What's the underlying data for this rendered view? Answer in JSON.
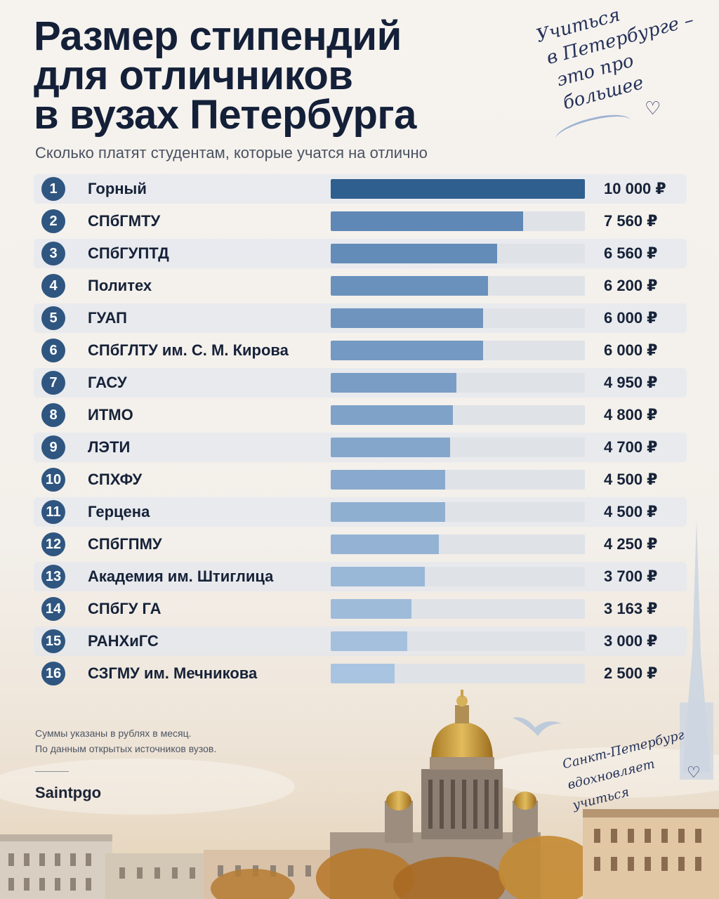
{
  "title_lines": [
    "Размер стипендий",
    "для отличников",
    "в вузах Петербурга"
  ],
  "subtitle": "Сколько платят студентам, которые учатся на отлично",
  "note_top_lines": [
    "Учиться",
    "в Петербурге –",
    "это про большее"
  ],
  "note_bottom_lines": [
    "Санкт-Петербург",
    "вдохновляет учиться"
  ],
  "footnote_lines": [
    "Суммы указаны в рублях в месяц.",
    "По данным открытых источников вузов."
  ],
  "brand": "Saintpgo",
  "colors": {
    "top_bar": "#2f5f8e",
    "bar_dark": "#5f88b6",
    "bar_light": "#a9c4e0",
    "rank_circle": "#2f5680"
  },
  "chart_data": {
    "type": "bar",
    "orientation": "horizontal",
    "title": "Размер стипендий для отличников в вузах Петербурга",
    "subtitle": "Сколько платят студентам, которые учатся на отлично",
    "xlim": [
      0,
      10000
    ],
    "categories": [
      "Горный",
      "СПбГМТУ",
      "СПбГУПТД",
      "Политех",
      "ГУАП",
      "СПбГЛТУ им. С. М. Кирова",
      "ГАСУ",
      "ИТМО",
      "ЛЭТИ",
      "СПХФУ",
      "Герцена",
      "СПбГПМУ",
      "Академия им. Штиглица",
      "СПбГУ ГА",
      "РАНХиГС",
      "СЗГМУ им. Мечникова"
    ],
    "ranks": [
      "1",
      "2",
      "3",
      "4",
      "5",
      "6",
      "7",
      "8",
      "9",
      "10",
      "11",
      "12",
      "13",
      "14",
      "15",
      "16"
    ],
    "values": [
      10000,
      7560,
      6560,
      6200,
      6000,
      6000,
      4950,
      4800,
      4700,
      4500,
      4500,
      4250,
      3700,
      3163,
      3000,
      2500
    ],
    "value_labels": [
      "10 000 ₽",
      "7 560 ₽",
      "6 560 ₽",
      "6 200 ₽",
      "6 000 ₽",
      "6 000 ₽",
      "4 950 ₽",
      "4 800 ₽",
      "4 700 ₽",
      "4 500 ₽",
      "4 500 ₽",
      "4 250 ₽",
      "3 700 ₽",
      "3 163 ₽",
      "3 000 ₽",
      "2 500 ₽"
    ],
    "grid": false,
    "legend": "none"
  }
}
